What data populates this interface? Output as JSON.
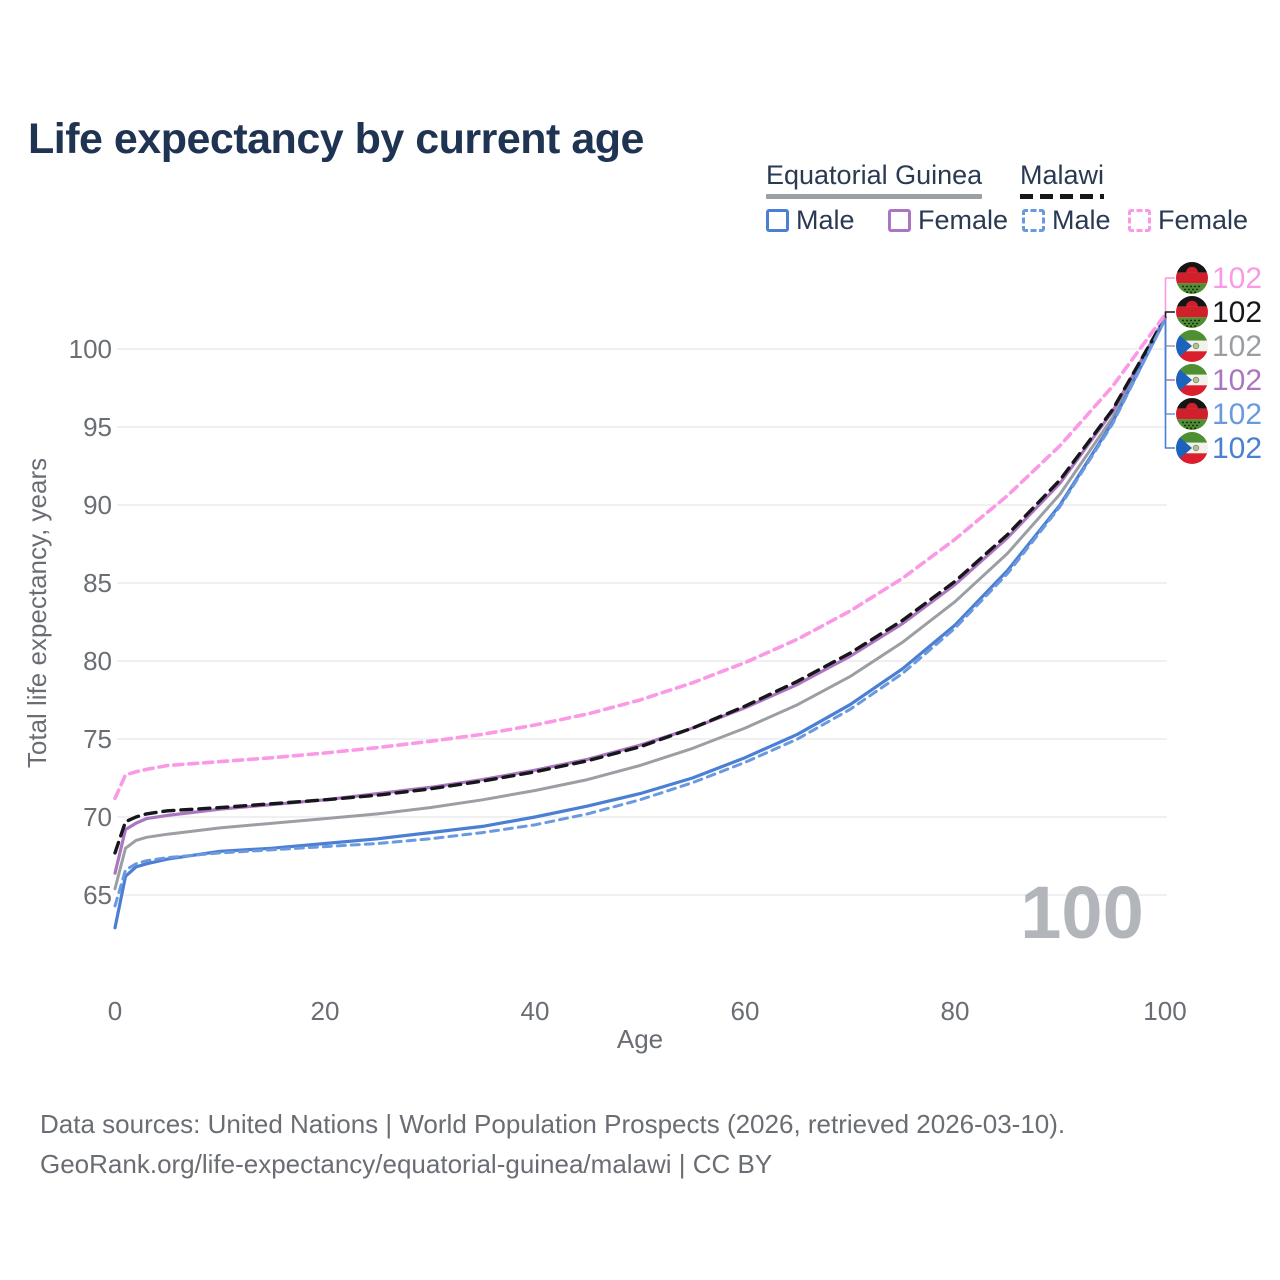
{
  "title": "Life expectancy by current age",
  "watermark": "100",
  "legend": {
    "groups": [
      {
        "label": "Equatorial Guinea",
        "style": "solid",
        "underline_color": "#9aa0a6"
      },
      {
        "label": "Malawi",
        "style": "dashed",
        "underline_color": "#17171b"
      }
    ],
    "items": [
      {
        "label": "Male",
        "group": "Equatorial Guinea",
        "color": "#4a7fd3",
        "dashed": false
      },
      {
        "label": "Female",
        "group": "Equatorial Guinea",
        "color": "#ab76c0",
        "dashed": false
      },
      {
        "label": "Male",
        "group": "Malawi",
        "color": "#6b99e0",
        "dashed": true
      },
      {
        "label": "Female",
        "group": "Malawi",
        "color": "#fa99e5",
        "dashed": true
      }
    ]
  },
  "footer": {
    "line1": "Data sources: United Nations | World Population Prospects (2026, retrieved 2026-03-10).",
    "line2": "GeoRank.org/life-expectancy/equatorial-guinea/malawi | CC BY"
  },
  "chart_data": {
    "type": "line",
    "title": "Life expectancy by current age",
    "xlabel": "Age",
    "ylabel": "Total life expectancy, years",
    "xlim": [
      0,
      100
    ],
    "ylim": [
      62,
      103
    ],
    "x_ticks": [
      0,
      20,
      40,
      60,
      80,
      100
    ],
    "y_ticks": [
      65,
      70,
      75,
      80,
      85,
      90,
      95,
      100
    ],
    "grid": "horizontal",
    "legend_position": "top-right",
    "current_age_indicator": "100",
    "x": [
      0,
      1,
      2,
      3,
      5,
      10,
      15,
      20,
      25,
      30,
      35,
      40,
      45,
      50,
      55,
      60,
      65,
      70,
      75,
      80,
      85,
      90,
      95,
      100
    ],
    "series": [
      {
        "id": "malawi-female",
        "name": "Malawi Female",
        "country": "Malawi",
        "sex": "Female",
        "flag": "mw",
        "color": "#fa99e5",
        "dash": "9 6",
        "width": 3.6,
        "end_label": "102",
        "values": [
          71.2,
          72.7,
          72.9,
          73.05,
          73.3,
          73.55,
          73.8,
          74.1,
          74.45,
          74.85,
          75.3,
          75.9,
          76.6,
          77.5,
          78.6,
          79.9,
          81.4,
          83.2,
          85.3,
          87.8,
          90.6,
          93.8,
          97.6,
          102.2
        ]
      },
      {
        "id": "malawi-both",
        "name": "Malawi",
        "country": "Malawi",
        "sex": "Both sexes",
        "flag": "mw",
        "color": "#17171b",
        "dash": "11 7",
        "width": 3.4,
        "end_label": "102",
        "values": [
          67.7,
          69.7,
          70.0,
          70.2,
          70.4,
          70.6,
          70.85,
          71.1,
          71.4,
          71.8,
          72.3,
          72.9,
          73.6,
          74.5,
          75.7,
          77.1,
          78.7,
          80.5,
          82.6,
          85.1,
          88.1,
          91.6,
          96.1,
          102.0
        ]
      },
      {
        "id": "equatorial-guinea-both",
        "name": "Equatorial Guinea",
        "country": "Equatorial Guinea",
        "sex": "Both sexes",
        "flag": "gq",
        "color": "#9b9fa4",
        "dash": null,
        "width": 3.0,
        "end_label": "102",
        "values": [
          65.4,
          68.0,
          68.5,
          68.7,
          68.9,
          69.3,
          69.6,
          69.9,
          70.2,
          70.6,
          71.1,
          71.7,
          72.4,
          73.3,
          74.4,
          75.7,
          77.2,
          79.0,
          81.2,
          83.8,
          86.9,
          90.7,
          95.6,
          102.0
        ]
      },
      {
        "id": "equatorial-guinea-female",
        "name": "Equatorial Guinea Female",
        "country": "Equatorial Guinea",
        "sex": "Female",
        "flag": "gq",
        "color": "#ab76c0",
        "dash": null,
        "width": 3.2,
        "end_label": "102",
        "values": [
          66.4,
          69.2,
          69.6,
          69.9,
          70.1,
          70.5,
          70.8,
          71.1,
          71.5,
          71.9,
          72.4,
          73.0,
          73.7,
          74.6,
          75.7,
          77.0,
          78.5,
          80.3,
          82.4,
          84.9,
          87.9,
          91.4,
          96.0,
          102.0
        ]
      },
      {
        "id": "malawi-male",
        "name": "Malawi Male",
        "country": "Malawi",
        "sex": "Male",
        "flag": "mw",
        "color": "#6b99e0",
        "dash": "8 6",
        "width": 3.0,
        "end_label": "102",
        "values": [
          64.3,
          66.6,
          67.0,
          67.2,
          67.4,
          67.7,
          67.9,
          68.1,
          68.3,
          68.6,
          69.0,
          69.5,
          70.2,
          71.1,
          72.2,
          73.5,
          75.0,
          76.9,
          79.2,
          82.1,
          85.6,
          89.9,
          95.2,
          101.9
        ]
      },
      {
        "id": "equatorial-guinea-male",
        "name": "Equatorial Guinea Male",
        "country": "Equatorial Guinea",
        "sex": "Male",
        "flag": "gq",
        "color": "#4a7fd3",
        "dash": null,
        "width": 3.2,
        "end_label": "102",
        "values": [
          62.9,
          66.2,
          66.8,
          67.0,
          67.3,
          67.8,
          68.0,
          68.3,
          68.6,
          69.0,
          69.4,
          70.0,
          70.7,
          71.5,
          72.5,
          73.8,
          75.3,
          77.2,
          79.5,
          82.3,
          85.8,
          90.0,
          95.3,
          101.9
        ]
      }
    ]
  }
}
